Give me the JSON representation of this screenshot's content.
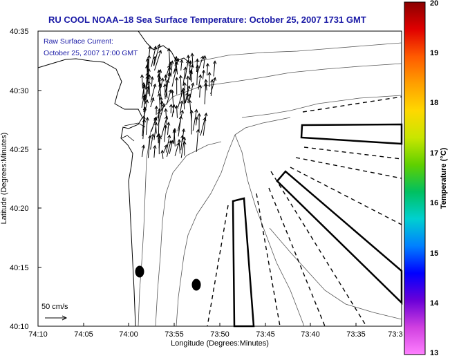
{
  "title": "RU COOL  NOAA–18  Sea Surface Temperature:  October 25, 2007 1731 GMT",
  "annotation": {
    "line1": "Raw Surface Current:",
    "line2": "October 25, 2007 17:00 GMT"
  },
  "scale_label": "50 cm/s",
  "x_axis": {
    "label": "Longitude (Degrees:Minutes)",
    "ticks": [
      "74:10",
      "74:05",
      "74:00",
      "73:55",
      "73:50",
      "73:45",
      "73:40",
      "73:35",
      "73:3"
    ]
  },
  "y_axis": {
    "label": "Latitude (Degrees:Minutes)",
    "ticks": [
      "40:35",
      "40:30",
      "40:25",
      "40:20",
      "40:15",
      "40:10"
    ]
  },
  "colorbar": {
    "label": "Temperature (°C)",
    "ticks": [
      "20",
      "19",
      "18",
      "17",
      "16",
      "15",
      "14",
      "13"
    ],
    "colors": [
      "#8b0000",
      "#e00000",
      "#ff5a00",
      "#ff9f00",
      "#ffd800",
      "#c8e600",
      "#5fd000",
      "#00c060",
      "#00d0d0",
      "#0080ff",
      "#0000ff",
      "#6a00d8",
      "#d040e0",
      "#ff80ff"
    ]
  }
}
